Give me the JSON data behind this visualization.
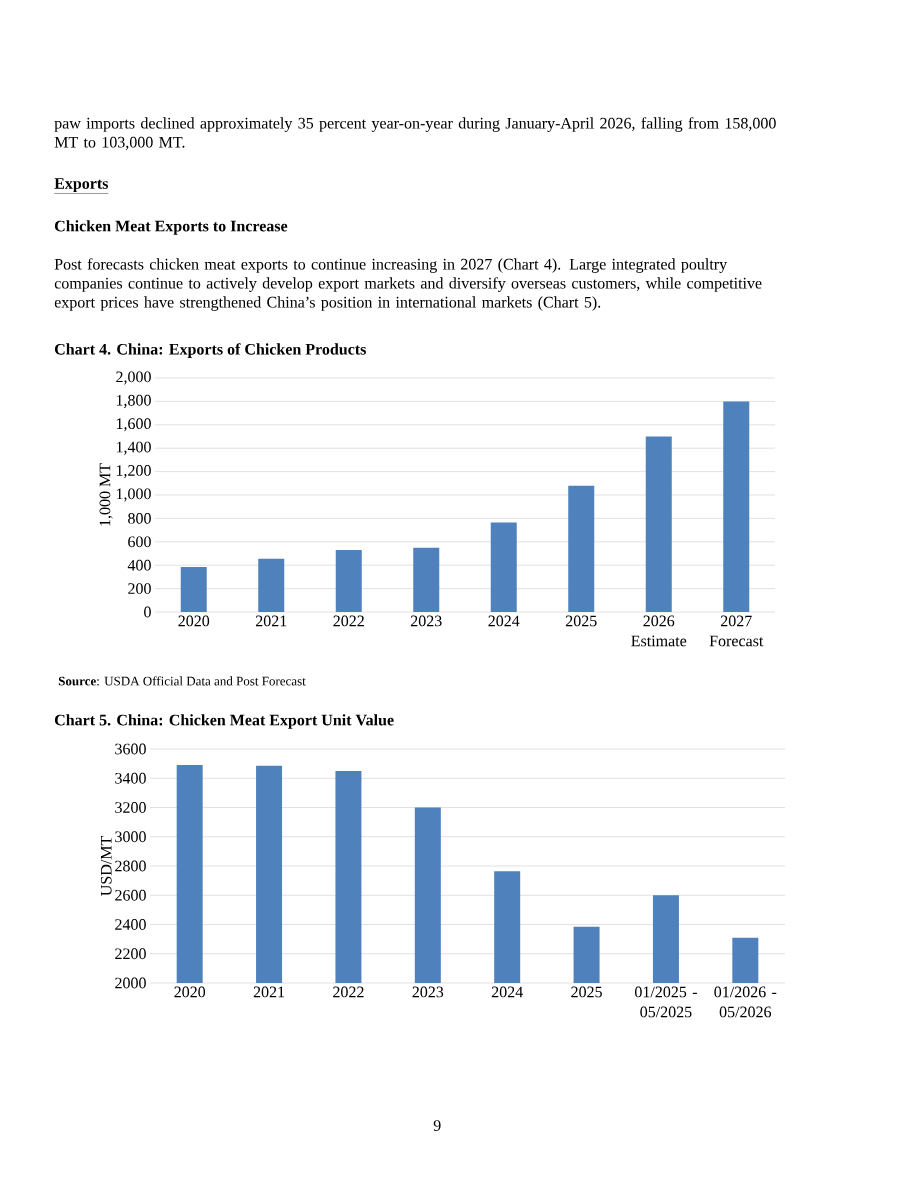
{
  "chart_data": [
    {
      "type": "other",
      "annotations": [
        "paw imports declined approximately 35 percent year-on-year during January-April 2026, falling from 158,000 MT to 103,000 MT.",
        "Exports",
        "Chicken Meat Exports to Increase",
        "Post forecasts chicken meat exports to continue increasing in 2027 (Chart 4). Large integrated poultry companies continue to actively develop export markets and diversify overseas customers, while competitive export prices have strengthened China’s position in international markets (Chart 5).",
        "9"
      ]
    },
    {
      "type": "bar",
      "title": "Chart 4. China: Exports of Chicken Products",
      "ylabel": "1,000 MT",
      "categories": [
        "2020",
        "2021",
        "2022",
        "2023",
        "2024",
        "2025",
        "2026 Estimate",
        "2027 Forecast"
      ],
      "values": [
        385,
        455,
        530,
        550,
        765,
        1080,
        1500,
        1800
      ],
      "color": "#4f81bd",
      "ylim": [
        0,
        2000
      ],
      "yticks": [
        0,
        200,
        400,
        600,
        800,
        {
          "value": 1000,
          "label": "1,000"
        },
        {
          "value": 1200,
          "label": "1,200"
        },
        {
          "value": 1400,
          "label": "1,400"
        },
        {
          "value": 1600,
          "label": "1,600"
        },
        {
          "value": 1800,
          "label": "1,800"
        },
        {
          "value": 2000,
          "label": "2,000"
        }
      ],
      "grid": "y",
      "annotations": [
        "**Source**: USDA Official Data and Post Forecast"
      ]
    },
    {
      "type": "bar",
      "title": "Chart 5. China: Chicken Meat Export Unit Value",
      "ylabel": "USD/MT",
      "categories": [
        "2020",
        "2021",
        "2022",
        "2023",
        "2024",
        "2025",
        "01/2025 - 05/2025",
        "01/2026 - 05/2026"
      ],
      "values": [
        3490,
        3485,
        3450,
        3200,
        2765,
        2385,
        2600,
        2310
      ],
      "color": "#4f81bd",
      "ylim": [
        2000,
        3600
      ],
      "yticks": [
        2000,
        2200,
        2400,
        2600,
        2800,
        3000,
        3200,
        3400,
        3600
      ],
      "grid": "y"
    }
  ]
}
